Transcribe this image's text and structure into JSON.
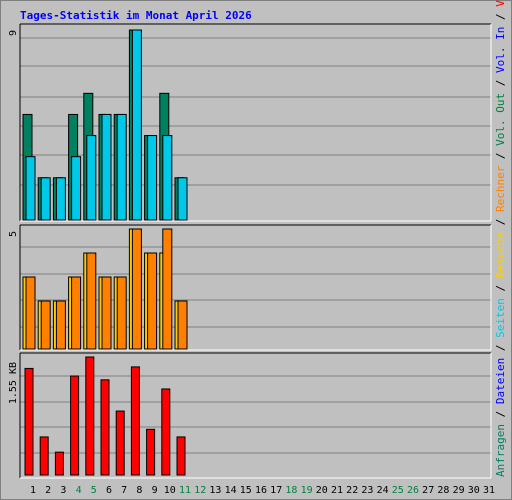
{
  "title": "Tages-Statistik im Monat April 2026",
  "colors": {
    "background": "#c0c0c0",
    "title": "#0000ff",
    "anfragen": "#008060",
    "dateien": "#00c8e8",
    "seiten": "#00c8e8",
    "besuche": "#ffcc00",
    "rechner": "#ff8000",
    "vol_out": "#008040",
    "vol_in": "#0000ff",
    "volumen": "#ff0000",
    "weekend_label": "#008040"
  },
  "legend": [
    {
      "label": "Anfragen",
      "color": "#008060"
    },
    {
      "label": "Dateien",
      "color": "#0000ff"
    },
    {
      "label": "Seiten",
      "color": "#00c8e8"
    },
    {
      "label": "Besuche",
      "color": "#ffcc00"
    },
    {
      "label": "Rechner",
      "color": "#ff8000"
    },
    {
      "label": "Vol. Out",
      "color": "#008040"
    },
    {
      "label": "Vol. In",
      "color": "#0000ff"
    },
    {
      "label": "Volumen",
      "color": "#ff0000"
    }
  ],
  "chart_data": [
    {
      "type": "bar",
      "panel": "hits",
      "ymax_label": "9",
      "ylim": [
        0,
        9
      ],
      "categories": [
        "1",
        "2",
        "3",
        "4",
        "5",
        "6",
        "7",
        "8",
        "9",
        "10",
        "11",
        "12",
        "13",
        "14",
        "15",
        "16",
        "17",
        "18",
        "19",
        "20",
        "21",
        "22",
        "23",
        "24",
        "25",
        "26",
        "27",
        "28",
        "29",
        "30",
        "31"
      ],
      "weekend_days": [
        "4",
        "5",
        "11",
        "12",
        "18",
        "19",
        "25",
        "26"
      ],
      "series": [
        {
          "name": "Anfragen",
          "values": [
            5,
            2,
            2,
            5,
            6,
            5,
            5,
            9,
            4,
            6,
            2,
            0,
            0,
            0,
            0,
            0,
            0,
            0,
            0,
            0,
            0,
            0,
            0,
            0,
            0,
            0,
            0,
            0,
            0,
            0,
            0
          ]
        },
        {
          "name": "Dateien",
          "values": [
            3,
            2,
            2,
            3,
            4,
            5,
            5,
            9,
            4,
            4,
            2,
            0,
            0,
            0,
            0,
            0,
            0,
            0,
            0,
            0,
            0,
            0,
            0,
            0,
            0,
            0,
            0,
            0,
            0,
            0,
            0
          ]
        }
      ]
    },
    {
      "type": "bar",
      "panel": "visits",
      "ymax_label": "5",
      "ylim": [
        0,
        5
      ],
      "categories": [
        "1",
        "2",
        "3",
        "4",
        "5",
        "6",
        "7",
        "8",
        "9",
        "10",
        "11",
        "12",
        "13",
        "14",
        "15",
        "16",
        "17",
        "18",
        "19",
        "20",
        "21",
        "22",
        "23",
        "24",
        "25",
        "26",
        "27",
        "28",
        "29",
        "30",
        "31"
      ],
      "series": [
        {
          "name": "Besuche",
          "values": [
            3,
            2,
            2,
            3,
            4,
            3,
            3,
            5,
            4,
            4,
            2,
            0,
            0,
            0,
            0,
            0,
            0,
            0,
            0,
            0,
            0,
            0,
            0,
            0,
            0,
            0,
            0,
            0,
            0,
            0,
            0
          ]
        },
        {
          "name": "Rechner",
          "values": [
            3,
            2,
            2,
            3,
            4,
            3,
            3,
            5,
            4,
            5,
            2,
            0,
            0,
            0,
            0,
            0,
            0,
            0,
            0,
            0,
            0,
            0,
            0,
            0,
            0,
            0,
            0,
            0,
            0,
            0,
            0
          ]
        }
      ]
    },
    {
      "type": "bar",
      "panel": "volume",
      "ymax_label": "1.55 KB",
      "ylim": [
        0,
        1.55
      ],
      "categories": [
        "1",
        "2",
        "3",
        "4",
        "5",
        "6",
        "7",
        "8",
        "9",
        "10",
        "11",
        "12",
        "13",
        "14",
        "15",
        "16",
        "17",
        "18",
        "19",
        "20",
        "21",
        "22",
        "23",
        "24",
        "25",
        "26",
        "27",
        "28",
        "29",
        "30",
        "31"
      ],
      "series": [
        {
          "name": "Volumen",
          "values": [
            1.4,
            0.5,
            0.3,
            1.3,
            1.55,
            1.25,
            0.84,
            1.42,
            0.6,
            1.13,
            0.5,
            0,
            0,
            0,
            0,
            0,
            0,
            0,
            0,
            0,
            0,
            0,
            0,
            0,
            0,
            0,
            0,
            0,
            0,
            0,
            0
          ]
        }
      ]
    }
  ]
}
